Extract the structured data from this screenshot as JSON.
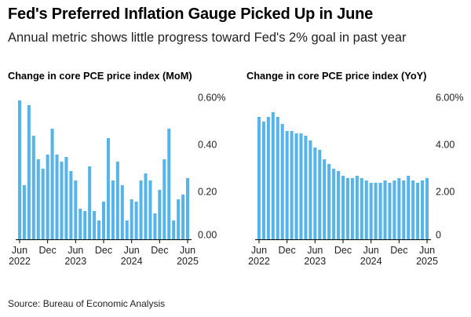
{
  "headline": "Fed's Preferred Inflation Gauge Picked Up in June",
  "subheadline": "Annual metric shows little progress toward Fed's 2% goal in past year",
  "source": "Source: Bureau of Economic Analysis",
  "colors": {
    "bar": "#56b4e9",
    "axis": "#000000",
    "grid": "#cccccc"
  },
  "chart_data": [
    {
      "type": "bar",
      "title": "Change in core PCE price index (MoM)",
      "xlabel": "",
      "ylabel": "",
      "ylim": [
        0,
        0.6
      ],
      "y_ticks": [
        {
          "value": 0.6,
          "label": "0.60%"
        },
        {
          "value": 0.4,
          "label": "0.40"
        },
        {
          "value": 0.2,
          "label": "0.20"
        },
        {
          "value": 0.0,
          "label": "0.00"
        }
      ],
      "x_ticks": [
        {
          "index": 0,
          "label": "Jun",
          "sublabel": "2022"
        },
        {
          "index": 6,
          "label": "Dec",
          "sublabel": ""
        },
        {
          "index": 12,
          "label": "Jun",
          "sublabel": "2023"
        },
        {
          "index": 18,
          "label": "Dec",
          "sublabel": ""
        },
        {
          "index": 24,
          "label": "Jun",
          "sublabel": "2024"
        },
        {
          "index": 30,
          "label": "Dec",
          "sublabel": ""
        },
        {
          "index": 36,
          "label": "Jun",
          "sublabel": "2025"
        }
      ],
      "categories": [
        "Jun 2022",
        "Jul 2022",
        "Aug 2022",
        "Sep 2022",
        "Oct 2022",
        "Nov 2022",
        "Dec 2022",
        "Jan 2023",
        "Feb 2023",
        "Mar 2023",
        "Apr 2023",
        "May 2023",
        "Jun 2023",
        "Jul 2023",
        "Aug 2023",
        "Sep 2023",
        "Oct 2023",
        "Nov 2023",
        "Dec 2023",
        "Jan 2024",
        "Feb 2024",
        "Mar 2024",
        "Apr 2024",
        "May 2024",
        "Jun 2024",
        "Jul 2024",
        "Aug 2024",
        "Sep 2024",
        "Oct 2024",
        "Nov 2024",
        "Dec 2024",
        "Jan 2025",
        "Feb 2025",
        "Mar 2025",
        "Apr 2025",
        "May 2025",
        "Jun 2025"
      ],
      "values": [
        0.59,
        0.23,
        0.57,
        0.44,
        0.34,
        0.3,
        0.36,
        0.47,
        0.36,
        0.33,
        0.35,
        0.29,
        0.25,
        0.13,
        0.12,
        0.31,
        0.12,
        0.08,
        0.16,
        0.43,
        0.25,
        0.33,
        0.23,
        0.08,
        0.17,
        0.16,
        0.25,
        0.28,
        0.25,
        0.11,
        0.21,
        0.34,
        0.47,
        0.08,
        0.17,
        0.19,
        0.26
      ]
    },
    {
      "type": "bar",
      "title": "Change in core PCE price index (YoY)",
      "xlabel": "",
      "ylabel": "",
      "ylim": [
        0,
        6
      ],
      "y_ticks": [
        {
          "value": 6,
          "label": "6.00%"
        },
        {
          "value": 4,
          "label": "4.00"
        },
        {
          "value": 2,
          "label": "2.00"
        },
        {
          "value": 0,
          "label": "0"
        }
      ],
      "x_ticks": [
        {
          "index": 0,
          "label": "Jun",
          "sublabel": "2022"
        },
        {
          "index": 6,
          "label": "Dec",
          "sublabel": ""
        },
        {
          "index": 12,
          "label": "Jun",
          "sublabel": "2023"
        },
        {
          "index": 18,
          "label": "Dec",
          "sublabel": ""
        },
        {
          "index": 24,
          "label": "Jun",
          "sublabel": "2024"
        },
        {
          "index": 30,
          "label": "Dec",
          "sublabel": ""
        },
        {
          "index": 36,
          "label": "Jun",
          "sublabel": "2025"
        }
      ],
      "categories": [
        "Jun 2022",
        "Jul 2022",
        "Aug 2022",
        "Sep 2022",
        "Oct 2022",
        "Nov 2022",
        "Dec 2022",
        "Jan 2023",
        "Feb 2023",
        "Mar 2023",
        "Apr 2023",
        "May 2023",
        "Jun 2023",
        "Jul 2023",
        "Aug 2023",
        "Sep 2023",
        "Oct 2023",
        "Nov 2023",
        "Dec 2023",
        "Jan 2024",
        "Feb 2024",
        "Mar 2024",
        "Apr 2024",
        "May 2024",
        "Jun 2024",
        "Jul 2024",
        "Aug 2024",
        "Sep 2024",
        "Oct 2024",
        "Nov 2024",
        "Dec 2024",
        "Jan 2025",
        "Feb 2025",
        "Mar 2025",
        "Apr 2025",
        "May 2025",
        "Jun 2025"
      ],
      "values": [
        5.2,
        5.0,
        5.2,
        5.4,
        5.2,
        4.9,
        4.6,
        4.6,
        4.5,
        4.5,
        4.4,
        4.2,
        3.9,
        3.8,
        3.4,
        3.2,
        3.0,
        2.9,
        2.7,
        2.6,
        2.6,
        2.7,
        2.6,
        2.5,
        2.4,
        2.4,
        2.4,
        2.5,
        2.4,
        2.5,
        2.6,
        2.5,
        2.7,
        2.5,
        2.4,
        2.5,
        2.6
      ]
    }
  ]
}
